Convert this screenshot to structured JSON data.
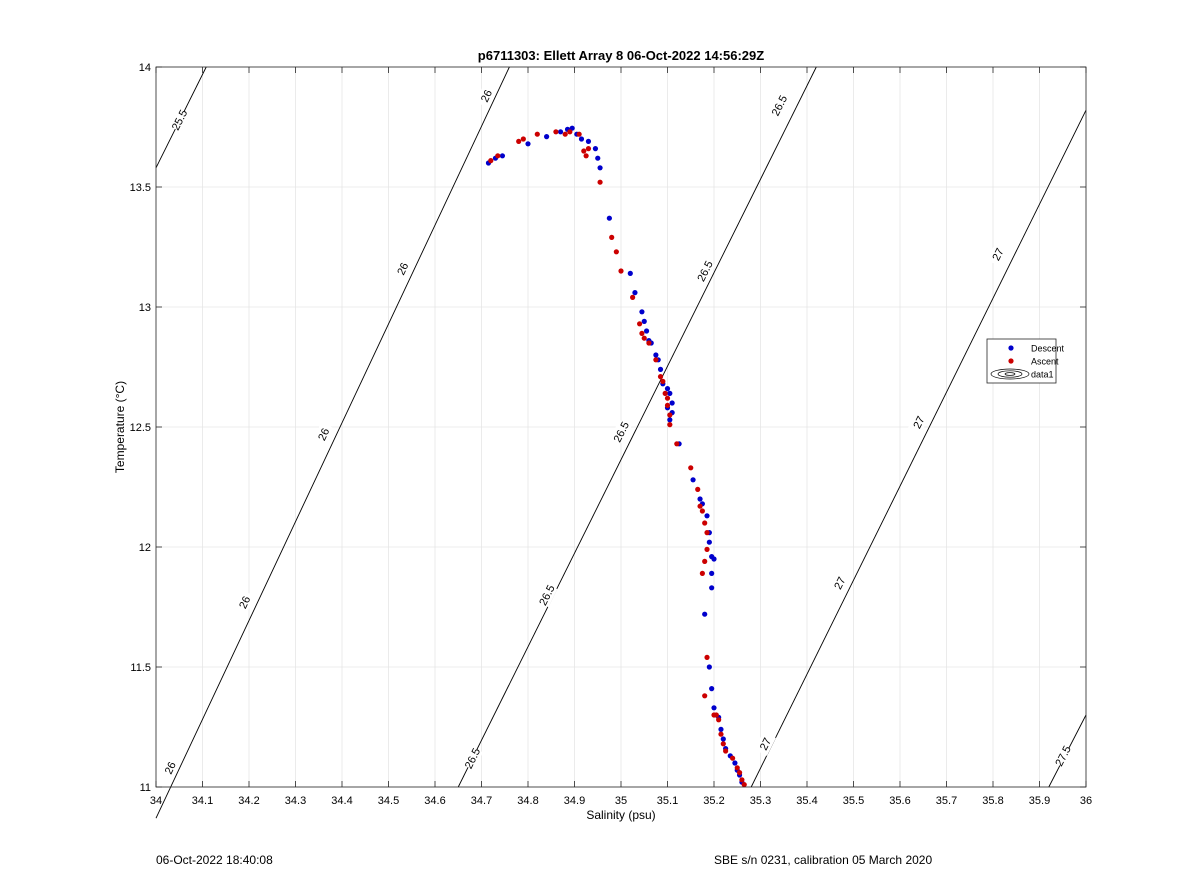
{
  "footer": {
    "left": "06-Oct-2022 18:40:08",
    "right": "SBE s/n 0231, calibration 05 March 2020"
  },
  "chart_data": {
    "type": "scatter",
    "title": "p6711303: Ellett Array 8 06-Oct-2022 14:56:29Z",
    "xlabel": "Salinity (psu)",
    "ylabel": "Temperature (°C)",
    "xlim": [
      34,
      36
    ],
    "ylim": [
      11,
      14
    ],
    "xticks": [
      34,
      34.1,
      34.2,
      34.3,
      34.4,
      34.5,
      34.6,
      34.7,
      34.8,
      34.9,
      35,
      35.1,
      35.2,
      35.3,
      35.4,
      35.5,
      35.6,
      35.7,
      35.8,
      35.9,
      36
    ],
    "xtick_labels": [
      "34",
      "34.1",
      "34.2",
      "34.3",
      "34.4",
      "34.5",
      "34.6",
      "34.7",
      "34.8",
      "34.9",
      "35",
      "35.1",
      "35.2",
      "35.3",
      "35.4",
      "35.5",
      "35.6",
      "35.7",
      "35.8",
      "35.9",
      "36"
    ],
    "yticks": [
      11,
      11.5,
      12,
      12.5,
      13,
      13.5,
      14
    ],
    "ytick_labels": [
      "11",
      "11.5",
      "12",
      "12.5",
      "13",
      "13.5",
      "14"
    ],
    "grid": true,
    "legend_position": "right",
    "legend": [
      "Descent",
      "Ascent",
      "data1"
    ],
    "colors": {
      "descent": "#0000cc",
      "ascent": "#cc0000",
      "contour": "#000000",
      "grid": "#e6e6e6"
    },
    "contours": [
      {
        "label": "25.5",
        "points": [
          [
            34,
            13.58
          ],
          [
            34.108,
            14
          ]
        ],
        "labels_at": [
          [
            34.05,
            13.78
          ]
        ]
      },
      {
        "label": "26",
        "points": [
          [
            34,
            10.87
          ],
          [
            34.76,
            14
          ]
        ],
        "labels_at": [
          [
            34.03,
            11.08
          ],
          [
            34.19,
            11.77
          ],
          [
            34.36,
            12.47
          ],
          [
            34.53,
            13.16
          ],
          [
            34.71,
            13.88
          ]
        ]
      },
      {
        "label": "26.5",
        "points": [
          [
            34.65,
            11
          ],
          [
            35.42,
            14
          ]
        ],
        "labels_at": [
          [
            34.68,
            11.12
          ],
          [
            34.84,
            11.8
          ],
          [
            35.0,
            12.48
          ],
          [
            35.18,
            13.15
          ],
          [
            35.34,
            13.84
          ]
        ]
      },
      {
        "label": "27",
        "points": [
          [
            35.28,
            11
          ],
          [
            36.0,
            13.82
          ]
        ],
        "labels_at": [
          [
            35.31,
            11.18
          ],
          [
            35.47,
            11.85
          ],
          [
            35.64,
            12.52
          ],
          [
            35.81,
            13.22
          ]
        ]
      },
      {
        "label": "27.5",
        "points": [
          [
            35.92,
            11
          ],
          [
            36.0,
            11.3
          ]
        ],
        "labels_at": [
          [
            35.95,
            11.13
          ]
        ]
      }
    ],
    "series": [
      {
        "name": "Descent",
        "color": "#0000cc",
        "points": [
          [
            34.715,
            13.6
          ],
          [
            34.73,
            13.62
          ],
          [
            34.745,
            13.63
          ],
          [
            34.8,
            13.68
          ],
          [
            34.84,
            13.71
          ],
          [
            34.87,
            13.73
          ],
          [
            34.885,
            13.74
          ],
          [
            34.895,
            13.745
          ],
          [
            34.905,
            13.72
          ],
          [
            34.915,
            13.7
          ],
          [
            34.93,
            13.69
          ],
          [
            34.945,
            13.66
          ],
          [
            34.95,
            13.62
          ],
          [
            34.955,
            13.58
          ],
          [
            34.975,
            13.37
          ],
          [
            35.02,
            13.14
          ],
          [
            35.03,
            13.06
          ],
          [
            35.045,
            12.98
          ],
          [
            35.05,
            12.94
          ],
          [
            35.055,
            12.9
          ],
          [
            35.06,
            12.86
          ],
          [
            35.065,
            12.85
          ],
          [
            35.075,
            12.8
          ],
          [
            35.08,
            12.78
          ],
          [
            35.085,
            12.74
          ],
          [
            35.09,
            12.68
          ],
          [
            35.1,
            12.66
          ],
          [
            35.105,
            12.64
          ],
          [
            35.11,
            12.6
          ],
          [
            35.1,
            12.58
          ],
          [
            35.11,
            12.56
          ],
          [
            35.105,
            12.53
          ],
          [
            35.125,
            12.43
          ],
          [
            35.155,
            12.28
          ],
          [
            35.17,
            12.2
          ],
          [
            35.175,
            12.18
          ],
          [
            35.185,
            12.13
          ],
          [
            35.19,
            12.06
          ],
          [
            35.19,
            12.02
          ],
          [
            35.195,
            11.96
          ],
          [
            35.2,
            11.95
          ],
          [
            35.195,
            11.89
          ],
          [
            35.195,
            11.83
          ],
          [
            35.18,
            11.72
          ],
          [
            35.19,
            11.5
          ],
          [
            35.195,
            11.41
          ],
          [
            35.2,
            11.33
          ],
          [
            35.21,
            11.29
          ],
          [
            35.215,
            11.24
          ],
          [
            35.22,
            11.2
          ],
          [
            35.225,
            11.16
          ],
          [
            35.235,
            11.13
          ],
          [
            35.245,
            11.1
          ],
          [
            35.25,
            11.07
          ],
          [
            35.255,
            11.05
          ],
          [
            35.26,
            11.02
          ]
        ]
      },
      {
        "name": "Ascent",
        "color": "#cc0000",
        "points": [
          [
            34.72,
            13.61
          ],
          [
            34.735,
            13.63
          ],
          [
            34.78,
            13.69
          ],
          [
            34.79,
            13.7
          ],
          [
            34.82,
            13.72
          ],
          [
            34.86,
            13.73
          ],
          [
            34.88,
            13.72
          ],
          [
            34.89,
            13.73
          ],
          [
            34.91,
            13.72
          ],
          [
            34.92,
            13.65
          ],
          [
            34.925,
            13.63
          ],
          [
            34.93,
            13.66
          ],
          [
            34.955,
            13.52
          ],
          [
            34.98,
            13.29
          ],
          [
            34.99,
            13.23
          ],
          [
            35.0,
            13.15
          ],
          [
            35.025,
            13.04
          ],
          [
            35.04,
            12.93
          ],
          [
            35.045,
            12.89
          ],
          [
            35.05,
            12.87
          ],
          [
            35.06,
            12.85
          ],
          [
            35.075,
            12.78
          ],
          [
            35.085,
            12.71
          ],
          [
            35.09,
            12.69
          ],
          [
            35.095,
            12.64
          ],
          [
            35.1,
            12.62
          ],
          [
            35.1,
            12.59
          ],
          [
            35.105,
            12.55
          ],
          [
            35.105,
            12.51
          ],
          [
            35.12,
            12.43
          ],
          [
            35.15,
            12.33
          ],
          [
            35.165,
            12.24
          ],
          [
            35.17,
            12.17
          ],
          [
            35.175,
            12.15
          ],
          [
            35.18,
            12.1
          ],
          [
            35.185,
            12.06
          ],
          [
            35.185,
            11.99
          ],
          [
            35.18,
            11.94
          ],
          [
            35.175,
            11.89
          ],
          [
            35.185,
            11.54
          ],
          [
            35.18,
            11.38
          ],
          [
            35.2,
            11.3
          ],
          [
            35.21,
            11.28
          ],
          [
            35.205,
            11.3
          ],
          [
            35.215,
            11.22
          ],
          [
            35.22,
            11.18
          ],
          [
            35.225,
            11.15
          ],
          [
            35.24,
            11.12
          ],
          [
            35.25,
            11.08
          ],
          [
            35.255,
            11.06
          ],
          [
            35.26,
            11.03
          ],
          [
            35.265,
            11.01
          ]
        ]
      }
    ]
  }
}
